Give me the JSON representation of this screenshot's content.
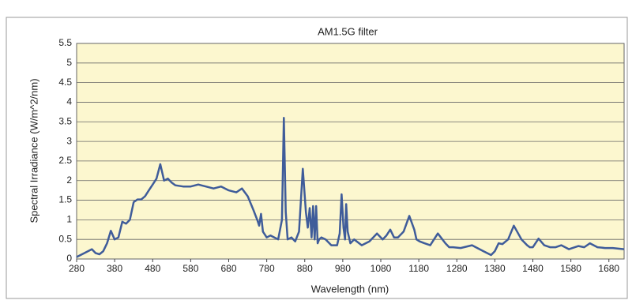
{
  "chart_data": {
    "type": "line",
    "title": "AM1.5G filter",
    "x_label": "Wavelength (nm)",
    "y_label": "Spectral Irradiance (W/m^2/nm)",
    "xlim": [
      280,
      1720
    ],
    "xticks": [
      280,
      380,
      480,
      580,
      680,
      780,
      880,
      980,
      1080,
      1180,
      1280,
      1380,
      1480,
      1580,
      1680
    ],
    "ylim": [
      0,
      5.5
    ],
    "yticks": [
      0,
      0.5,
      1,
      1.5,
      2,
      2.5,
      3,
      3.5,
      4,
      4.5,
      5,
      5.5
    ],
    "grid": true,
    "background": "#fcf7cf",
    "series": [
      {
        "name": "AM1.5G",
        "color": "#3f5c9a",
        "x": [
          280,
          300,
          320,
          330,
          340,
          350,
          360,
          370,
          380,
          390,
          400,
          410,
          420,
          430,
          440,
          450,
          460,
          470,
          480,
          490,
          500,
          510,
          520,
          530,
          540,
          560,
          580,
          600,
          620,
          640,
          660,
          680,
          700,
          715,
          730,
          745,
          755,
          760,
          765,
          770,
          780,
          790,
          800,
          810,
          820,
          825,
          830,
          835,
          845,
          855,
          865,
          875,
          883,
          888,
          893,
          898,
          902,
          906,
          910,
          914,
          918,
          924,
          935,
          950,
          965,
          972,
          977,
          982,
          986,
          989,
          993,
          1000,
          1010,
          1030,
          1050,
          1070,
          1085,
          1095,
          1105,
          1115,
          1125,
          1140,
          1155,
          1168,
          1174,
          1182,
          1195,
          1210,
          1230,
          1250,
          1260,
          1270,
          1290,
          1320,
          1350,
          1370,
          1380,
          1390,
          1400,
          1415,
          1430,
          1450,
          1465,
          1472,
          1480,
          1495,
          1510,
          1525,
          1540,
          1555,
          1575,
          1600,
          1615,
          1630,
          1650,
          1670,
          1690,
          1720
        ],
        "values": [
          0.05,
          0.15,
          0.25,
          0.15,
          0.12,
          0.2,
          0.4,
          0.72,
          0.5,
          0.55,
          0.95,
          0.9,
          1.0,
          1.45,
          1.52,
          1.52,
          1.6,
          1.75,
          1.9,
          2.05,
          2.42,
          2.0,
          2.05,
          1.95,
          1.88,
          1.85,
          1.85,
          1.9,
          1.85,
          1.8,
          1.85,
          1.75,
          1.7,
          1.8,
          1.6,
          1.25,
          1.0,
          0.85,
          1.15,
          0.7,
          0.55,
          0.6,
          0.55,
          0.5,
          1.0,
          3.6,
          1.2,
          0.5,
          0.55,
          0.45,
          0.7,
          2.3,
          1.2,
          0.8,
          1.3,
          0.55,
          1.35,
          0.5,
          1.35,
          0.4,
          0.5,
          0.55,
          0.5,
          0.35,
          0.35,
          0.65,
          1.65,
          0.8,
          0.5,
          1.4,
          0.7,
          0.4,
          0.5,
          0.35,
          0.45,
          0.65,
          0.5,
          0.6,
          0.75,
          0.55,
          0.55,
          0.7,
          1.1,
          0.75,
          0.5,
          0.45,
          0.4,
          0.35,
          0.65,
          0.4,
          0.3,
          0.3,
          0.28,
          0.35,
          0.2,
          0.1,
          0.2,
          0.4,
          0.38,
          0.5,
          0.85,
          0.5,
          0.35,
          0.3,
          0.3,
          0.52,
          0.35,
          0.3,
          0.3,
          0.35,
          0.25,
          0.33,
          0.3,
          0.4,
          0.3,
          0.28,
          0.28,
          0.25
        ]
      }
    ]
  }
}
